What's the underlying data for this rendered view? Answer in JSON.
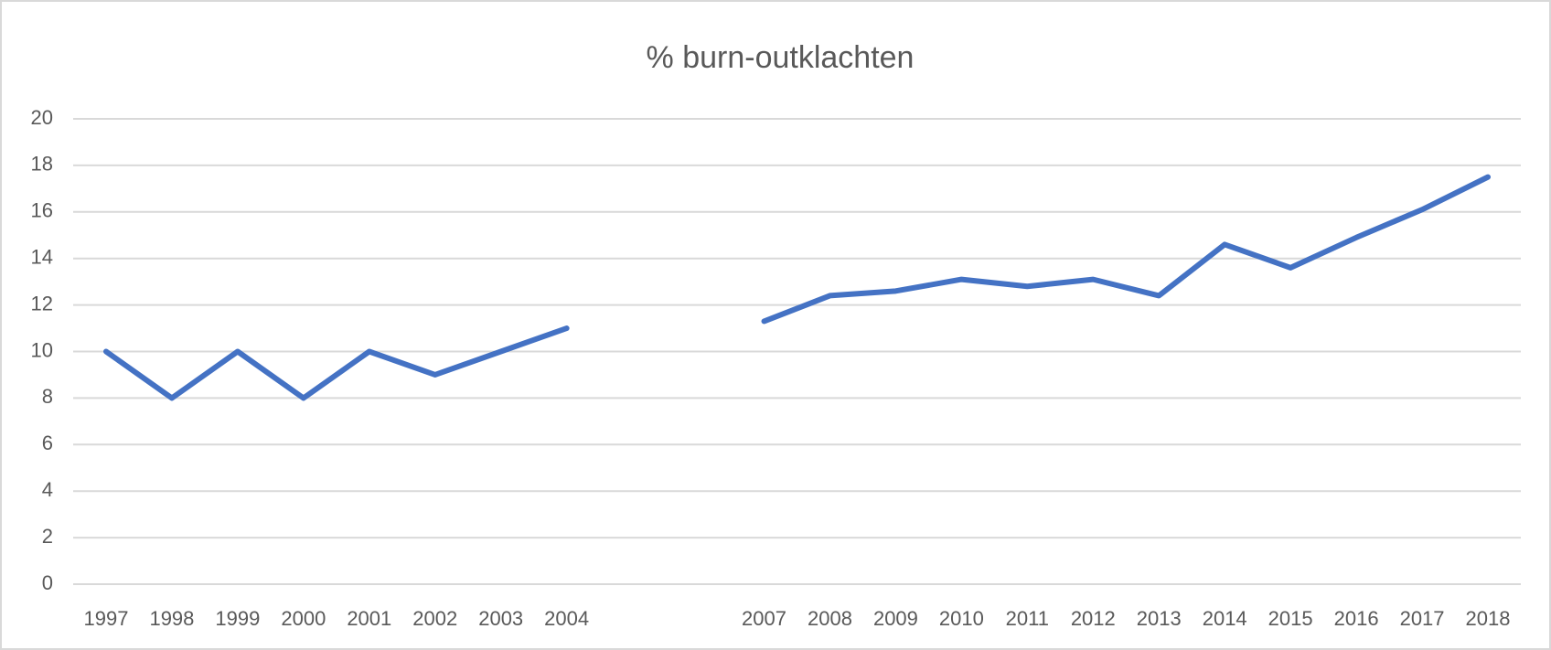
{
  "chart_data": {
    "type": "line",
    "title": "% burn-outklachten",
    "categories": [
      "1997",
      "1998",
      "1999",
      "2000",
      "2001",
      "2002",
      "2003",
      "2004",
      null,
      null,
      "2007",
      "2008",
      "2009",
      "2010",
      "2011",
      "2012",
      "2013",
      "2014",
      "2015",
      "2016",
      "2017",
      "2018"
    ],
    "series": [
      {
        "name": null,
        "color": "#4472c4",
        "values": [
          10,
          8,
          10,
          8,
          10,
          9,
          10,
          11,
          null,
          null,
          11.3,
          12.4,
          12.6,
          13.1,
          12.8,
          13.1,
          12.4,
          14.6,
          13.6,
          14.9,
          16.1,
          17.5
        ]
      }
    ],
    "ylim": [
      0,
      20
    ],
    "yticks": [
      0,
      2,
      4,
      6,
      8,
      10,
      12,
      14,
      16,
      18,
      20
    ],
    "grid": true
  }
}
